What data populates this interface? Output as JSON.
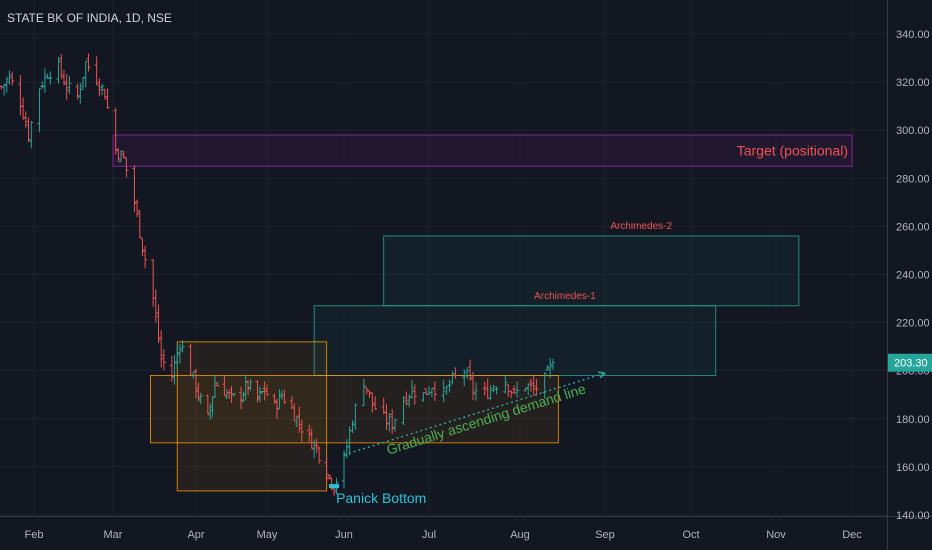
{
  "header": {
    "title": "STATE BK OF INDIA, 1D, NSE"
  },
  "price_label": "203.30",
  "colors": {
    "background": "#131722",
    "up": "#26a69a",
    "down": "#ef5350",
    "grid": "#1e222d",
    "axis_text": "#b2b5be",
    "target_box": "#9c27b0",
    "archimedes_box": "#26a69a",
    "support_box": "#ff9800",
    "annotation_red": "#ef5350",
    "annotation_green": "#4caf50",
    "annotation_teal": "#26c6da"
  },
  "chart_data": {
    "type": "candlestick",
    "title": "STATE BK OF INDIA, 1D, NSE",
    "x_ticks": [
      "Feb",
      "Mar",
      "Apr",
      "May",
      "Jun",
      "Jul",
      "Aug",
      "Sep",
      "Oct",
      "Nov",
      "Dec"
    ],
    "y_ticks": [
      "140.00",
      "160.00",
      "180.00",
      "200.00",
      "220.00",
      "240.00",
      "260.00",
      "280.00",
      "300.00",
      "320.00",
      "340.00"
    ],
    "ylim": [
      130,
      350
    ],
    "last_price": 203.3,
    "price_path": [
      [
        "2020-01-20",
        318
      ],
      [
        "2020-01-23",
        322
      ],
      [
        "2020-01-27",
        312
      ],
      [
        "2020-01-30",
        298
      ],
      [
        "2020-02-03",
        318
      ],
      [
        "2020-02-06",
        324
      ],
      [
        "2020-02-10",
        326
      ],
      [
        "2020-02-13",
        318
      ],
      [
        "2020-02-17",
        314
      ],
      [
        "2020-02-20",
        328
      ],
      [
        "2020-02-24",
        322
      ],
      [
        "2020-02-27",
        315
      ],
      [
        "2020-03-02",
        292
      ],
      [
        "2020-03-05",
        288
      ],
      [
        "2020-03-09",
        270
      ],
      [
        "2020-03-12",
        252
      ],
      [
        "2020-03-16",
        230
      ],
      [
        "2020-03-19",
        205
      ],
      [
        "2020-03-23",
        198
      ],
      [
        "2020-03-26",
        212
      ],
      [
        "2020-03-30",
        200
      ],
      [
        "2020-04-02",
        190
      ],
      [
        "2020-04-06",
        180
      ],
      [
        "2020-04-09",
        195
      ],
      [
        "2020-04-13",
        192
      ],
      [
        "2020-04-16",
        188
      ],
      [
        "2020-04-20",
        190
      ],
      [
        "2020-04-23",
        194
      ],
      [
        "2020-04-27",
        188
      ],
      [
        "2020-04-30",
        192
      ],
      [
        "2020-05-04",
        185
      ],
      [
        "2020-05-07",
        190
      ],
      [
        "2020-05-11",
        184
      ],
      [
        "2020-05-14",
        178
      ],
      [
        "2020-05-18",
        172
      ],
      [
        "2020-05-21",
        168
      ],
      [
        "2020-05-25",
        158
      ],
      [
        "2020-05-28",
        152
      ],
      [
        "2020-06-01",
        163
      ],
      [
        "2020-06-04",
        180
      ],
      [
        "2020-06-08",
        196
      ],
      [
        "2020-06-11",
        186
      ],
      [
        "2020-06-15",
        180
      ],
      [
        "2020-06-18",
        178
      ],
      [
        "2020-06-22",
        188
      ],
      [
        "2020-06-25",
        192
      ],
      [
        "2020-06-29",
        190
      ],
      [
        "2020-07-02",
        194
      ],
      [
        "2020-07-06",
        190
      ],
      [
        "2020-07-09",
        196
      ],
      [
        "2020-07-13",
        200
      ],
      [
        "2020-07-16",
        192
      ],
      [
        "2020-07-20",
        190
      ],
      [
        "2020-07-23",
        194
      ],
      [
        "2020-07-27",
        196
      ],
      [
        "2020-07-30",
        190
      ],
      [
        "2020-08-03",
        194
      ],
      [
        "2020-08-06",
        192
      ],
      [
        "2020-08-10",
        196
      ],
      [
        "2020-08-13",
        203.3
      ]
    ],
    "zones": [
      {
        "kind": "target",
        "label": "Target (positional)",
        "from": "2020-03-01",
        "to": "2020-12-01",
        "y0": 285,
        "y1": 298
      },
      {
        "kind": "archimedes",
        "label": "Archimedes-1",
        "from": "2020-05-20",
        "to": "2020-10-10",
        "y0": 198,
        "y1": 227
      },
      {
        "kind": "archimedes",
        "label": "Archimedes-2",
        "from": "2020-06-15",
        "to": "2020-11-10",
        "y0": 227,
        "y1": 256
      },
      {
        "kind": "support",
        "label": "",
        "from": "2020-03-15",
        "to": "2020-08-15",
        "y0": 170,
        "y1": 198
      },
      {
        "kind": "support",
        "label": "",
        "from": "2020-03-25",
        "to": "2020-05-25",
        "y0": 150,
        "y1": 212
      }
    ],
    "trend_line": {
      "label": "Gradually ascending demand line",
      "from": [
        "2020-06-01",
        165
      ],
      "to": [
        "2020-09-01",
        199
      ]
    },
    "annotations": [
      {
        "label": "Panick Bottom",
        "date": "2020-05-28",
        "price": 152
      }
    ]
  }
}
